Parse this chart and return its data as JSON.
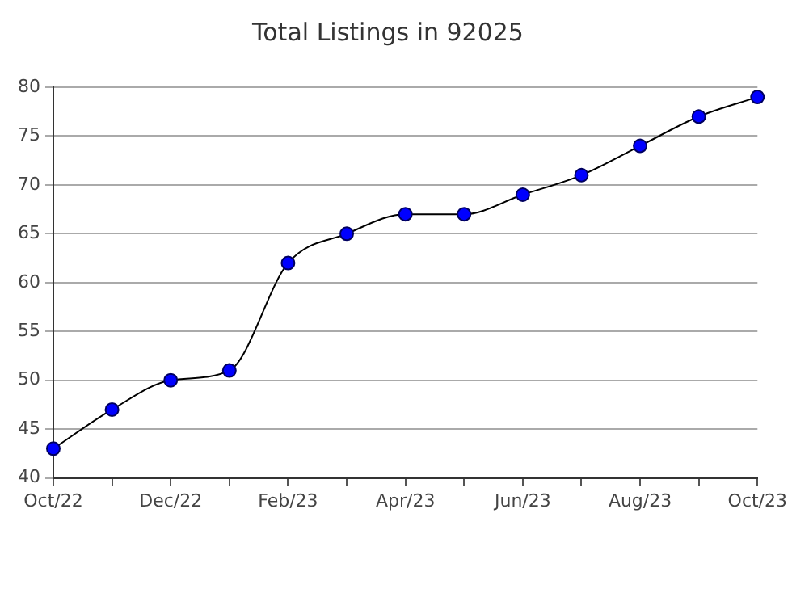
{
  "chart_data": {
    "type": "line",
    "title": "Total Listings in 92025",
    "categories": [
      "Oct/22",
      null,
      "Dec/22",
      null,
      "Feb/23",
      null,
      "Apr/23",
      null,
      "Jun/23",
      null,
      "Aug/23",
      null,
      "Oct/23"
    ],
    "series": [
      {
        "color": "#0000ff",
        "values": [
          43,
          47,
          50,
          51,
          62,
          65,
          67,
          67,
          69,
          71,
          74,
          77,
          79
        ]
      }
    ],
    "ylim": [
      40,
      80
    ],
    "yticks": [
      40,
      45,
      50,
      55,
      60,
      65,
      70,
      75,
      80
    ],
    "grid": "y",
    "legend": false,
    "marker": "circle",
    "line_style": "solid"
  }
}
